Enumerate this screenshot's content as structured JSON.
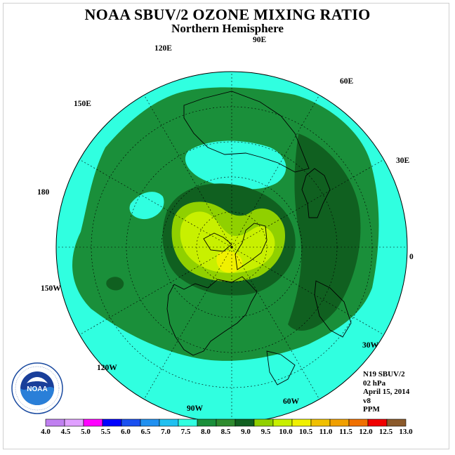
{
  "title": "NOAA SBUV/2 OZONE MIXING RATIO",
  "subtitle": "Northern Hemisphere",
  "longitude_labels": {
    "lon_90e": "90E",
    "lon_60e": "60E",
    "lon_30e": "30E",
    "lon_0": "0",
    "lon_30w": "30W",
    "lon_60w": "60W",
    "lon_90w": "90W",
    "lon_120w": "120W",
    "lon_150w": "150W",
    "lon_180": "180",
    "lon_150e": "150E",
    "lon_120e": "120E"
  },
  "info": {
    "satellite": "N19 SBUV/2",
    "level": "02 hPa",
    "date": "April 15, 2014",
    "version": "v8",
    "units": "PPM"
  },
  "logo": {
    "name": "NOAA",
    "ring_text": "NATIONAL OCEANIC AND ATMOSPHERIC ADMINISTRATION · U.S. DEPARTMENT OF COMMERCE"
  },
  "colorbar": {
    "ticks": [
      "4.0",
      "4.5",
      "5.0",
      "5.5",
      "6.0",
      "6.5",
      "7.0",
      "7.5",
      "8.0",
      "8.5",
      "9.0",
      "9.5",
      "10.0",
      "10.5",
      "11.0",
      "11.5",
      "12.0",
      "12.5",
      "13.0"
    ],
    "colors": [
      "#c080f0",
      "#e0a0ff",
      "#ff00ff",
      "#0000ff",
      "#1a50f0",
      "#2090f0",
      "#20c0f0",
      "#30ffe0",
      "#1a8f3a",
      "#2e8b2e",
      "#106020",
      "#90d000",
      "#c8f000",
      "#f0f000",
      "#f0c000",
      "#f0a000",
      "#f07000",
      "#f00000",
      "#8b5a2b"
    ]
  }
}
